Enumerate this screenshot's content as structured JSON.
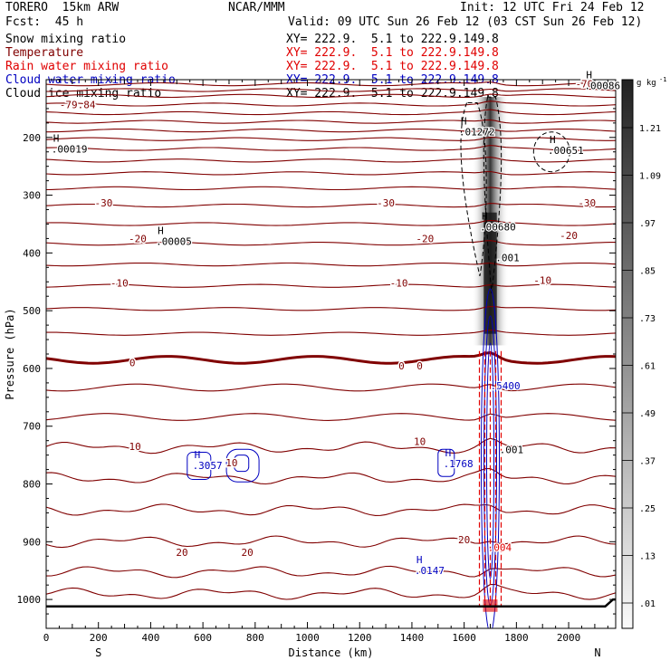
{
  "header": {
    "model": "TORERO  15km ARW",
    "center": "NCAR/MMM",
    "init": "Init: 12 UTC Fri 24 Feb 12",
    "fcst": "Fcst:  45 h",
    "valid": "Valid: 09 UTC Sun 26 Feb 12 (03 CST Sun 26 Feb 12)"
  },
  "legend": [
    {
      "name": "Snow mixing ratio",
      "xy": "XY= 222.9.  5.1 to 222.9.149.8",
      "color": "#000000"
    },
    {
      "name": "Temperature",
      "xy": "XY= 222.9.  5.1 to 222.9.149.8",
      "color": "#800000"
    },
    {
      "name": "Rain water mixing ratio",
      "xy": "XY= 222.9.  5.1 to 222.9.149.8",
      "color": "#e00000"
    },
    {
      "name": "Cloud water mixing ratio",
      "xy": "XY= 222.9.  5.1 to 222.9.149.8",
      "color": "#0000c0"
    },
    {
      "name": "Cloud ice mixing ratio",
      "xy": "XY= 222.9.  5.1 to 222.9.149.8",
      "color": "#000000"
    }
  ],
  "chart_data": {
    "type": "contour cross-section",
    "title": "Cross-section XY= 222.9.  5.1 to 222.9.149.8",
    "xlabel": "Distance (km)",
    "ylabel": "Pressure (hPa)",
    "xlim": [
      0,
      2180
    ],
    "ylim": [
      1050,
      100
    ],
    "x_ticks": [
      0,
      200,
      400,
      600,
      800,
      1000,
      1200,
      1400,
      1600,
      1800,
      2000
    ],
    "y_ticks": [
      200,
      300,
      400,
      500,
      600,
      700,
      800,
      900,
      1000
    ],
    "x_end_labels": {
      "left": "S",
      "right": "N"
    },
    "temperature_levels_c": [
      -79.84,
      -70,
      -60,
      -50,
      -40,
      -30,
      -20,
      -10,
      0,
      10,
      20
    ],
    "temperature_labels": [
      {
        "text": "-79.84",
        "x": 120,
        "p": 143
      },
      {
        "text": "-70",
        "x": 2060,
        "p": 107
      },
      {
        "text": "-30",
        "x": 220,
        "p": 313
      },
      {
        "text": "-30",
        "x": 1300,
        "p": 313
      },
      {
        "text": "-30",
        "x": 2070,
        "p": 313
      },
      {
        "text": "-20",
        "x": 350,
        "p": 375
      },
      {
        "text": "-20",
        "x": 1450,
        "p": 375
      },
      {
        "text": "-20",
        "x": 2000,
        "p": 370
      },
      {
        "text": "-10",
        "x": 280,
        "p": 452
      },
      {
        "text": "-10",
        "x": 1350,
        "p": 452
      },
      {
        "text": "-10",
        "x": 1900,
        "p": 447
      },
      {
        "text": "0",
        "x": 330,
        "p": 590
      },
      {
        "text": "0",
        "x": 1360,
        "p": 595
      },
      {
        "text": "0",
        "x": 1430,
        "p": 595
      },
      {
        "text": "10",
        "x": 340,
        "p": 735
      },
      {
        "text": "10",
        "x": 710,
        "p": 763
      },
      {
        "text": "10",
        "x": 1430,
        "p": 726
      },
      {
        "text": "20",
        "x": 520,
        "p": 918
      },
      {
        "text": "20",
        "x": 770,
        "p": 918
      },
      {
        "text": "20",
        "x": 1600,
        "p": 896
      }
    ],
    "extrema": [
      {
        "label": "H",
        "value": ".00086",
        "x": 2060,
        "p": 110,
        "color": "#000000"
      },
      {
        "label": "H",
        "value": ".01272",
        "x": 1580,
        "p": 190,
        "color": "#000000"
      },
      {
        "label": "H",
        "value": ".00019",
        "x": 20,
        "p": 220,
        "color": "#000000"
      },
      {
        "label": "H",
        "value": ".00651",
        "x": 1920,
        "p": 222,
        "color": "#000000"
      },
      {
        "label": "H",
        "value": ".00680",
        "x": 1660,
        "p": 355,
        "color": "#000000"
      },
      {
        "label": "H",
        "value": ".00005",
        "x": 420,
        "p": 380,
        "color": "#000000"
      },
      {
        "label": "",
        "value": ".001",
        "x": 1720,
        "p": 408,
        "color": "#000000"
      },
      {
        "label": "",
        "value": ".5400",
        "x": 1700,
        "p": 630,
        "color": "#0000c0"
      },
      {
        "label": "",
        "value": ".001",
        "x": 1735,
        "p": 740,
        "color": "#000000"
      },
      {
        "label": "H",
        "value": ".3057",
        "x": 560,
        "p": 768,
        "color": "#0000c0"
      },
      {
        "label": "H",
        "value": ".1768",
        "x": 1520,
        "p": 765,
        "color": "#0000c0"
      },
      {
        "label": "H",
        "value": ".0147",
        "x": 1410,
        "p": 950,
        "color": "#0000c0"
      },
      {
        "label": "",
        "value": ".004",
        "x": 1690,
        "p": 910,
        "color": "#e00000"
      }
    ],
    "snow_shading_colorbar": {
      "units": "g kg",
      "units_exp": "-1",
      "levels": [
        1.21,
        1.09,
        0.97,
        0.85,
        0.73,
        0.61,
        0.49,
        0.37,
        0.25,
        0.13,
        0.01
      ],
      "level_labels": [
        "1.21",
        "1.09",
        ".97",
        ".85",
        ".73",
        ".61",
        ".49",
        ".37",
        ".25",
        ".13",
        ".01"
      ]
    },
    "terrain_surface_hpa": 1012
  }
}
